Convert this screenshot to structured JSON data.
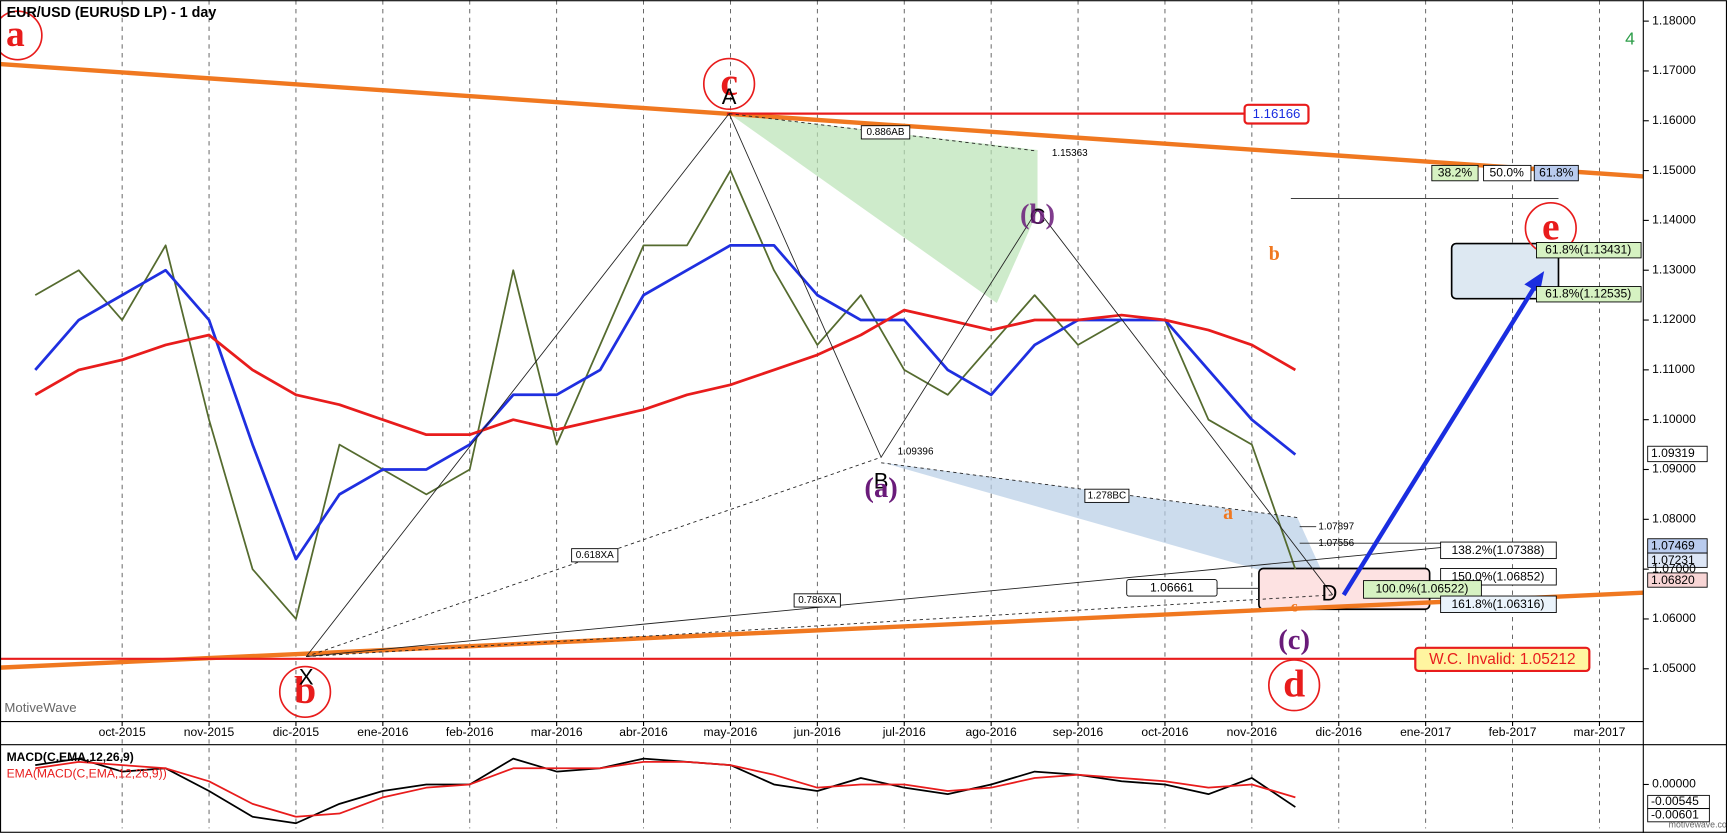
{
  "chart_data": [
    {
      "type": "line",
      "title": "EUR/USD (EURUSD LP) - 1 day",
      "categories": [
        null,
        null,
        "oct-2015",
        null,
        "nov-2015",
        null,
        "dic-2015",
        null,
        "ene-2016",
        null,
        "feb-2016",
        null,
        "mar-2016",
        null,
        "abr-2016",
        null,
        "may-2016",
        null,
        "jun-2016",
        null,
        "jul-2016",
        null,
        "ago-2016",
        null,
        "sep-2016",
        null,
        "oct-2016",
        null,
        "nov-2016",
        null,
        "dic-2016",
        null,
        "ene-2017",
        null,
        "feb-2017",
        null,
        "mar-2017"
      ],
      "series": [
        {
          "color": "#556b2f",
          "values": [
            1.125,
            1.13,
            1.12,
            1.135,
            1.1,
            1.07,
            1.06,
            1.095,
            1.09,
            1.085,
            1.09,
            1.13,
            1.095,
            1.115,
            1.135,
            1.135,
            1.15,
            1.13,
            1.115,
            1.125,
            1.11,
            1.105,
            1.115,
            1.125,
            1.115,
            1.12,
            1.12,
            1.1,
            1.095,
            1.07,
            null,
            null,
            null,
            null,
            null,
            null,
            null
          ]
        },
        {
          "color": "#1f2fe0",
          "values": [
            1.11,
            1.12,
            1.125,
            1.13,
            1.12,
            1.095,
            1.072,
            1.085,
            1.09,
            1.09,
            1.095,
            1.105,
            1.105,
            1.11,
            1.125,
            1.13,
            1.135,
            1.135,
            1.125,
            1.12,
            1.12,
            1.11,
            1.105,
            1.115,
            1.12,
            1.12,
            1.12,
            1.11,
            1.1,
            1.093,
            null,
            null,
            null,
            null,
            null,
            null,
            null
          ]
        },
        {
          "color": "#e81c1c",
          "values": [
            1.105,
            1.11,
            1.112,
            1.115,
            1.117,
            1.11,
            1.105,
            1.103,
            1.1,
            1.097,
            1.097,
            1.1,
            1.098,
            1.1,
            1.102,
            1.105,
            1.107,
            1.11,
            1.113,
            1.117,
            1.122,
            1.12,
            1.118,
            1.12,
            1.12,
            1.121,
            1.12,
            1.118,
            1.115,
            1.11,
            null,
            null,
            null,
            null,
            null,
            null,
            null
          ]
        }
      ],
      "ylim": [
        1.0394,
        1.1831
      ],
      "yticks": [
        {
          "value": 1.05,
          "label": "1.05000"
        },
        {
          "value": 1.06,
          "label": "1.06000"
        },
        {
          "value": 1.07,
          "label": "1.07000"
        },
        {
          "value": 1.08,
          "label": "1.08000"
        },
        {
          "value": 1.09,
          "label": "1.09000"
        },
        {
          "value": 1.1,
          "label": "1.10000"
        },
        {
          "value": 1.11,
          "label": "1.11000"
        },
        {
          "value": 1.12,
          "label": "1.12000"
        },
        {
          "value": 1.13,
          "label": "1.13000"
        },
        {
          "value": 1.14,
          "label": "1.14000"
        },
        {
          "value": 1.15,
          "label": "1.15000"
        },
        {
          "value": 1.16,
          "label": "1.16000"
        },
        {
          "value": 1.17,
          "label": "1.17000"
        },
        {
          "value": 1.18,
          "label": "1.18000"
        }
      ],
      "grid": true,
      "annotations": [
        "a",
        "b",
        "c",
        "d",
        "e",
        "A",
        "X",
        "B",
        "C",
        "D",
        "(a)",
        "(b)",
        "(c)",
        "b",
        "a",
        "c",
        "1.16166",
        "W.C. Invalid: 1.05212",
        "0.886AB",
        "1.15363",
        "1.09396",
        "1.278BC",
        "0.618XA",
        "0.786XA",
        "1.07897",
        "1.07556",
        "1.06661",
        "138.2%(1.07388)",
        "150.0%(1.06852)",
        "100.0%(1.06522)",
        "161.8%(1.06316)",
        "38.2%",
        "50.0%",
        "61.8%",
        "61.8%(1.13431)",
        "61.8%(1.12535)",
        "1.09319",
        "1.07469",
        "1.07231",
        "1.06820",
        "4",
        "MotiveWave",
        "motivewave.com"
      ]
    },
    {
      "type": "line",
      "series": [
        {
          "name": "MACD(C,EMA,12,26,9)",
          "color": "#000000",
          "values": [
            0.006,
            0.008,
            0.004,
            0.005,
            -0.002,
            -0.01,
            -0.012,
            -0.006,
            -0.002,
            0.0,
            0.0,
            0.008,
            0.004,
            0.005,
            0.008,
            0.007,
            0.006,
            0.0,
            -0.002,
            0.002,
            -0.001,
            -0.003,
            0.0,
            0.004,
            0.003,
            0.001,
            0.0,
            -0.003,
            0.002,
            -0.007,
            null,
            null,
            null,
            null,
            null,
            null,
            null
          ]
        },
        {
          "name": "EMA(MACD(C,EMA,12,26,9))",
          "color": "#e81c1c",
          "values": [
            0.005,
            0.007,
            0.006,
            0.005,
            0.001,
            -0.006,
            -0.01,
            -0.009,
            -0.004,
            -0.001,
            0.0,
            0.005,
            0.005,
            0.005,
            0.007,
            0.007,
            0.006,
            0.003,
            -0.001,
            0.0,
            0.0,
            -0.002,
            -0.001,
            0.002,
            0.003,
            0.002,
            0.001,
            -0.001,
            0.0,
            -0.004,
            null,
            null,
            null,
            null,
            null,
            null,
            null
          ]
        }
      ],
      "ylim": [
        -0.0136,
        0.0123
      ],
      "yticks": [
        {
          "value": 0,
          "label": "0.00000"
        }
      ],
      "annotations": [
        "-0.00545",
        "-0.00601"
      ]
    }
  ]
}
